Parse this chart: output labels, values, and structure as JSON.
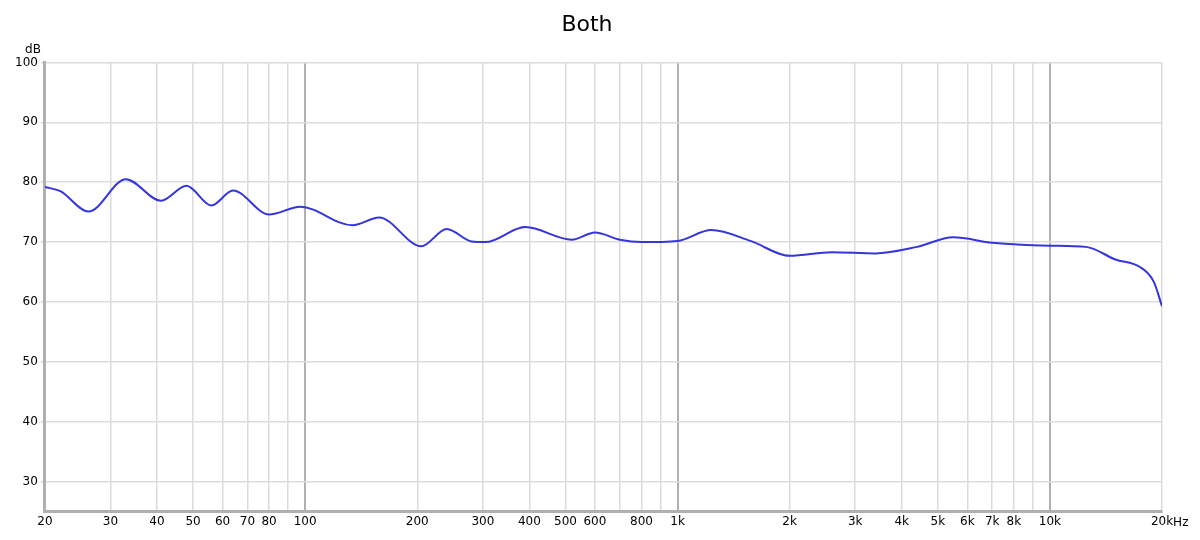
{
  "chart_data": {
    "type": "line",
    "title": "Both",
    "ylabel": "dB",
    "x": [
      20,
      22,
      26.2,
      33,
      41,
      48,
      56,
      64,
      80,
      97,
      134,
      158,
      205,
      240,
      280,
      305,
      390,
      520,
      600,
      700,
      800,
      1000,
      1232,
      1570,
      2000,
      2600,
      3400,
      4400,
      5500,
      7000,
      10000,
      12500,
      15000,
      17500,
      19000,
      20000
    ],
    "series": [
      {
        "color": "#3535dd",
        "values": [
          79.2,
          78.5,
          75.1,
          80.5,
          76.9,
          79.4,
          76.1,
          78.6,
          74.6,
          75.9,
          72.8,
          74.1,
          69.3,
          72.2,
          70.1,
          70.0,
          72.5,
          70.4,
          71.6,
          70.4,
          70.0,
          70.2,
          72.0,
          70.2,
          67.7,
          68.3,
          68.1,
          69.2,
          70.8,
          69.9,
          69.4,
          69.2,
          67.1,
          65.8,
          63.4,
          59.3
        ]
      }
    ],
    "log": "x",
    "xlim": [
      20,
      20000
    ],
    "xticks": [
      20,
      30,
      40,
      50,
      60,
      70,
      80,
      {
        "value": 90,
        "label": null
      },
      100,
      200,
      300,
      400,
      500,
      600,
      {
        "value": 700,
        "label": null
      },
      800,
      {
        "value": 900,
        "label": null
      },
      {
        "value": 1000,
        "label": "1k"
      },
      {
        "value": 2000,
        "label": "2k"
      },
      {
        "value": 3000,
        "label": "3k"
      },
      {
        "value": 4000,
        "label": "4k"
      },
      {
        "value": 5000,
        "label": "5k"
      },
      {
        "value": 6000,
        "label": "6k"
      },
      {
        "value": 7000,
        "label": "7k"
      },
      {
        "value": 8000,
        "label": "8k"
      },
      {
        "value": 9000,
        "label": null
      },
      {
        "value": 10000,
        "label": "10k"
      },
      {
        "value": 20000,
        "label": "20k"
      }
    ],
    "xlabel": "Hz",
    "ylim": [
      25,
      100
    ],
    "yticks": [
      30,
      40,
      50,
      60,
      70,
      80,
      90,
      100
    ],
    "grid": true,
    "legend": false,
    "marker": "none",
    "line_style": "solid"
  }
}
